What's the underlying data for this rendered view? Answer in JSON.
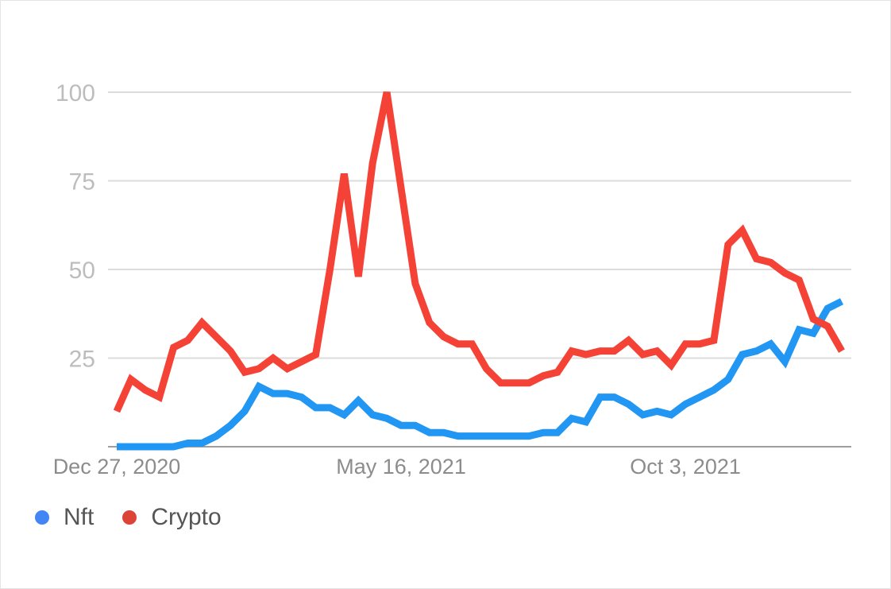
{
  "chart_data": {
    "type": "line",
    "x_start": "Dec 27, 2020",
    "x_step": "weekly",
    "x_tick_labels": [
      "Dec 27, 2020",
      "May 16, 2021",
      "Oct 3, 2021"
    ],
    "y_ticks": [
      25,
      50,
      75,
      100
    ],
    "ylim": [
      0,
      100
    ],
    "grid": true,
    "legend_position": "bottom-left",
    "series": [
      {
        "name": "Nft",
        "color": "#2196f3",
        "legend_color": "#4285f4",
        "values": [
          0,
          0,
          0,
          0,
          0,
          1,
          1,
          3,
          6,
          10,
          17,
          15,
          15,
          14,
          11,
          11,
          9,
          13,
          9,
          8,
          6,
          6,
          4,
          4,
          3,
          3,
          3,
          3,
          3,
          3,
          4,
          4,
          8,
          7,
          14,
          14,
          12,
          9,
          10,
          9,
          12,
          14,
          16,
          19,
          26,
          27,
          29,
          24,
          33,
          32,
          39,
          41
        ]
      },
      {
        "name": "Crypto",
        "color": "#f44336",
        "legend_color": "#db4437",
        "values": [
          10,
          19,
          16,
          14,
          28,
          30,
          35,
          31,
          27,
          21,
          22,
          25,
          22,
          24,
          26,
          50,
          77,
          48,
          80,
          100,
          73,
          46,
          35,
          31,
          29,
          29,
          22,
          18,
          18,
          18,
          20,
          21,
          27,
          26,
          27,
          27,
          30,
          26,
          27,
          23,
          29,
          29,
          30,
          57,
          61,
          53,
          52,
          49,
          47,
          36,
          34,
          27
        ]
      }
    ]
  }
}
